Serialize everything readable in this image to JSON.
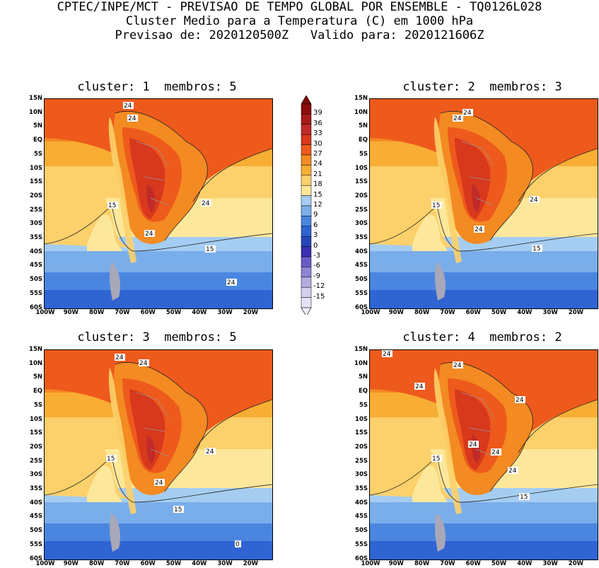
{
  "header": {
    "line1": "CPTEC/INPE/MCT - PREVISAO DE TEMPO GLOBAL POR ENSEMBLE - TQ0126L028",
    "line2": "Cluster Medio para a Temperatura (C) em 1000 hPa",
    "line3": "Previsao de: 2020120500Z   Valido para: 2020121606Z"
  },
  "panels": [
    {
      "title": "cluster: 1  membros: 5",
      "labels": [
        "24",
        "24",
        "24",
        "24",
        "24",
        "15",
        "15"
      ]
    },
    {
      "title": "cluster: 2  membros: 3",
      "labels": [
        "24",
        "24",
        "24",
        "24",
        "15",
        "15"
      ]
    },
    {
      "title": "cluster: 3  membros: 5",
      "labels": [
        "24",
        "24",
        "24",
        "24",
        "15",
        "15",
        "0"
      ]
    },
    {
      "title": "cluster: 4  membros: 2",
      "labels": [
        "24",
        "24",
        "24",
        "24",
        "24",
        "24",
        "24",
        "15",
        "15"
      ]
    }
  ],
  "lat_ticks": [
    "15N",
    "10N",
    "5N",
    "EQ",
    "5S",
    "10S",
    "15S",
    "20S",
    "25S",
    "30S",
    "35S",
    "40S",
    "45S",
    "50S",
    "55S",
    "60S"
  ],
  "lon_ticks": [
    "100W",
    "90W",
    "80W",
    "70W",
    "60W",
    "50W",
    "40W",
    "30W",
    "20W"
  ],
  "colorbar": {
    "labels": [
      "39",
      "36",
      "33",
      "30",
      "27",
      "24",
      "21",
      "18",
      "15",
      "12",
      "9",
      "6",
      "3",
      "0",
      "-3",
      "-6",
      "-9",
      "-12",
      "-15"
    ],
    "colors": [
      "#8b0d0d",
      "#a81a1a",
      "#c02a2a",
      "#d8381c",
      "#ee5a1c",
      "#f38a22",
      "#f8ad33",
      "#fcd06a",
      "#fde79a",
      "#a5cdf2",
      "#7aaeea",
      "#4a86e0",
      "#2f64d2",
      "#2845b8",
      "#3a2fb0",
      "#6a5cc8",
      "#8d84d6",
      "#b3acdf",
      "#d4cfee",
      "#e6e2f6"
    ],
    "triangle_top": "#7a0a0a",
    "triangle_bottom": "#eeeaf8"
  }
}
